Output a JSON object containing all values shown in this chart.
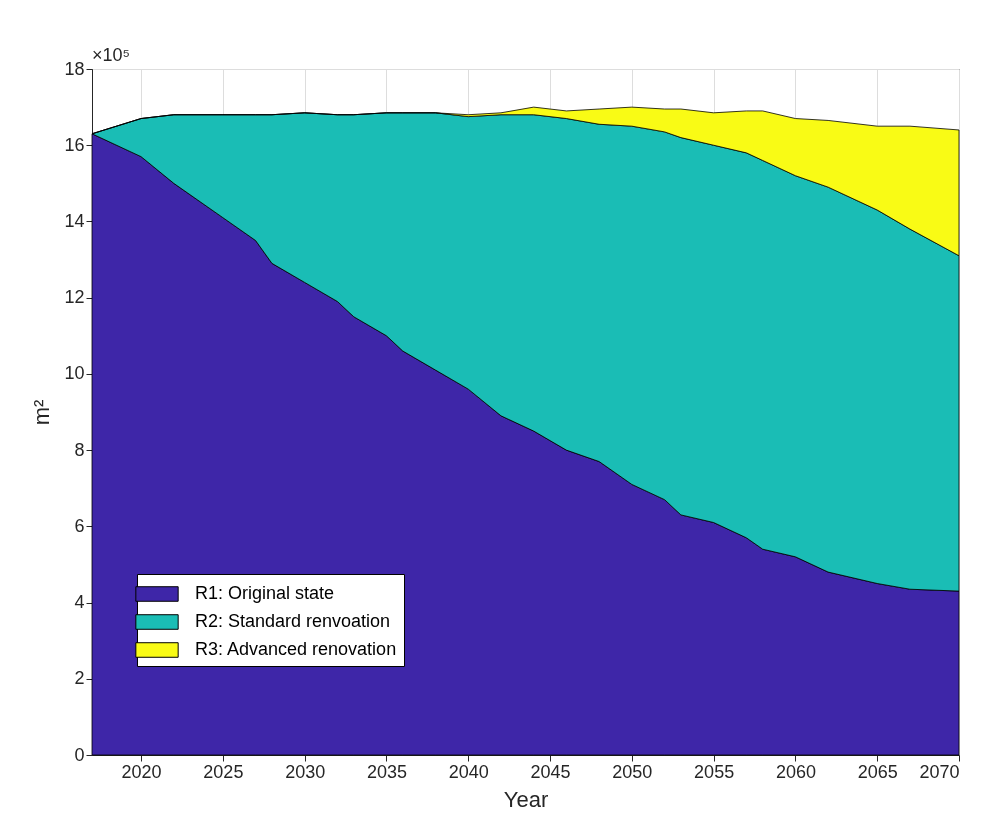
{
  "chart_data": {
    "type": "area",
    "stacked": true,
    "xlabel": "Year",
    "ylabel": "m²",
    "annotations": [
      "×10⁵"
    ],
    "x": [
      2017,
      2020,
      2022,
      2025,
      2027,
      2028,
      2030,
      2032,
      2033,
      2035,
      2036,
      2038,
      2040,
      2042,
      2044,
      2046,
      2048,
      2050,
      2052,
      2053,
      2055,
      2057,
      2058,
      2060,
      2062,
      2065,
      2067,
      2070
    ],
    "series": [
      {
        "name": "R1: Original state",
        "color": "#3e26a8",
        "values": [
          16.3,
          15.7,
          15.0,
          14.1,
          13.5,
          12.9,
          12.4,
          11.9,
          11.5,
          11.0,
          10.6,
          10.1,
          9.6,
          8.9,
          8.5,
          8.0,
          7.7,
          7.1,
          6.7,
          6.3,
          6.1,
          5.7,
          5.4,
          5.2,
          4.8,
          4.5,
          4.35,
          4.3
        ]
      },
      {
        "name": "R2: Standard renvoation",
        "color": "#1abdb5",
        "values": [
          0,
          1.0,
          1.8,
          2.7,
          3.3,
          3.9,
          4.45,
          4.9,
          5.3,
          5.85,
          6.25,
          6.75,
          7.15,
          7.9,
          8.3,
          8.7,
          8.85,
          9.4,
          9.65,
          9.9,
          9.9,
          10.1,
          10.2,
          10.0,
          10.1,
          9.8,
          9.45,
          8.8
        ]
      },
      {
        "name": "R3: Advanced renovation",
        "color": "#f9fb15",
        "values": [
          0,
          0,
          0,
          0,
          0,
          0,
          0,
          0,
          0,
          0,
          0,
          0,
          0.05,
          0.05,
          0.2,
          0.2,
          0.4,
          0.5,
          0.6,
          0.75,
          0.85,
          1.1,
          1.3,
          1.5,
          1.75,
          2.2,
          2.7,
          3.3
        ]
      }
    ],
    "xlim": [
      2017,
      2070
    ],
    "xticks": [
      2020,
      2025,
      2030,
      2035,
      2040,
      2045,
      2050,
      2055,
      2060,
      2065,
      2070
    ],
    "ylim": [
      0,
      18
    ],
    "yticks": [
      0,
      2,
      4,
      6,
      8,
      10,
      12,
      14,
      16,
      18
    ],
    "grid": true,
    "legend": "bottom left"
  }
}
